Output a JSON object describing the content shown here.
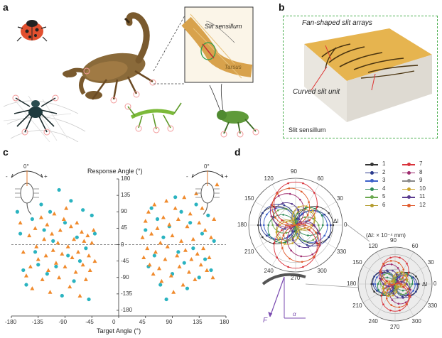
{
  "panels": {
    "a": {
      "letter": "a",
      "inset_labels": [
        "Slit sensillum",
        "Tarsus"
      ]
    },
    "b": {
      "letter": "b",
      "labels": [
        "Fan-shaped slit arrays",
        "Curved slit unit",
        "Slit sensillum"
      ]
    },
    "c": {
      "letter": "c",
      "y_label": "Response Angle (°)",
      "x_label": "Target Angle (°)",
      "y_ticks": [
        "180",
        "135",
        "90",
        "45",
        "0",
        "-45",
        "-90",
        "-135",
        "-180"
      ],
      "x_ticks": [
        "-180",
        "-135",
        "-90",
        "-45",
        "0",
        "45",
        "90",
        "135",
        "180"
      ],
      "indicator": {
        "zero": "0°",
        "minus": "-",
        "plus": "+"
      }
    },
    "d": {
      "letter": "d",
      "main_angles": [
        "90",
        "60",
        "30",
        "0",
        "330",
        "300",
        "270",
        "240",
        "210",
        "180",
        "150",
        "120"
      ],
      "main_rings": [
        "10",
        "20"
      ],
      "delta_label": "Δl",
      "unit_label": "(Δl: × 10⁻⁴ mm)",
      "legend": [
        "1",
        "2",
        "3",
        "4",
        "5",
        "6",
        "7",
        "8",
        "9",
        "10",
        "11",
        "12"
      ],
      "zoom_angles": [
        "90",
        "60",
        "30",
        "0",
        "330",
        "300",
        "270",
        "240",
        "210",
        "180",
        "150",
        "120"
      ],
      "force_label": "F",
      "alpha_label": "α"
    }
  },
  "colors": {
    "teal": "#2ab3c0",
    "orange": "#f08a2c",
    "legend": [
      "#333333",
      "#2a3a8c",
      "#3b5fc9",
      "#2e8b57",
      "#6aa84f",
      "#b39b2d",
      "#d9333b",
      "#9e2b6e",
      "#8a8a8a",
      "#c9a227",
      "#5b3c8f",
      "#e05a2c"
    ]
  },
  "chart_data": [
    {
      "type": "scatter",
      "title": "",
      "xlabel": "Target Angle (°)",
      "ylabel": "Response Angle (°)",
      "xlim": [
        -180,
        180
      ],
      "ylim": [
        -180,
        180
      ],
      "series": [
        {
          "name": "teal circles",
          "marker": "circle",
          "points": [
            [
              -170,
              90
            ],
            [
              -165,
              30
            ],
            [
              -160,
              -70
            ],
            [
              -155,
              -110
            ],
            [
              -150,
              120
            ],
            [
              -145,
              70
            ],
            [
              -140,
              -20
            ],
            [
              -135,
              -55
            ],
            [
              -130,
              110
            ],
            [
              -125,
              40
            ],
            [
              -120,
              -80
            ],
            [
              -115,
              90
            ],
            [
              -110,
              10
            ],
            [
              -105,
              -60
            ],
            [
              -100,
              150
            ],
            [
              -95,
              -140
            ],
            [
              -90,
              60
            ],
            [
              -85,
              -30
            ],
            [
              -80,
              120
            ],
            [
              -75,
              -100
            ],
            [
              -70,
              20
            ],
            [
              -65,
              -45
            ],
            [
              -60,
              95
            ],
            [
              -55,
              -10
            ],
            [
              -50,
              -150
            ],
            [
              -45,
              80
            ],
            [
              -40,
              30
            ],
            [
              45,
              40
            ],
            [
              50,
              -60
            ],
            [
              55,
              100
            ],
            [
              60,
              -30
            ],
            [
              65,
              70
            ],
            [
              70,
              -110
            ],
            [
              75,
              20
            ],
            [
              80,
              -150
            ],
            [
              85,
              50
            ],
            [
              90,
              -80
            ],
            [
              95,
              130
            ],
            [
              100,
              -20
            ],
            [
              105,
              90
            ],
            [
              110,
              -50
            ],
            [
              115,
              -120
            ],
            [
              120,
              60
            ],
            [
              125,
              -10
            ],
            [
              130,
              110
            ],
            [
              135,
              -90
            ],
            [
              140,
              30
            ],
            [
              145,
              -40
            ],
            [
              150,
              80
            ],
            [
              155,
              -70
            ],
            [
              160,
              10
            ]
          ]
        },
        {
          "name": "orange triangles",
          "marker": "triangle",
          "points": [
            [
              -165,
              60
            ],
            [
              -160,
              -20
            ],
            [
              -155,
              -85
            ],
            [
              -150,
              25
            ],
            [
              -148,
              -60
            ],
            [
              -145,
              -120
            ],
            [
              -140,
              45
            ],
            [
              -138,
              -5
            ],
            [
              -135,
              -40
            ],
            [
              -130,
              75
            ],
            [
              -128,
              -95
            ],
            [
              -125,
              15
            ],
            [
              -122,
              -30
            ],
            [
              -120,
              55
            ],
            [
              -118,
              -70
            ],
            [
              -115,
              -130
            ],
            [
              -112,
              30
            ],
            [
              -110,
              -15
            ],
            [
              -108,
              85
            ],
            [
              -105,
              -50
            ],
            [
              -102,
              5
            ],
            [
              -100,
              -90
            ],
            [
              -98,
              40
            ],
            [
              -95,
              -25
            ],
            [
              -92,
              70
            ],
            [
              -90,
              -60
            ],
            [
              -88,
              100
            ],
            [
              -85,
              -5
            ],
            [
              -82,
              -115
            ],
            [
              -80,
              50
            ],
            [
              -78,
              -35
            ],
            [
              -75,
              15
            ],
            [
              -72,
              -75
            ],
            [
              -70,
              60
            ],
            [
              -68,
              -20
            ],
            [
              -65,
              -140
            ],
            [
              -62,
              35
            ],
            [
              -60,
              -55
            ],
            [
              -58,
              10
            ],
            [
              -55,
              -95
            ],
            [
              -52,
              25
            ],
            [
              -50,
              -30
            ],
            [
              -48,
              -70
            ],
            [
              -45,
              5
            ],
            [
              -42,
              40
            ],
            [
              -40,
              -45
            ],
            [
              40,
              20
            ],
            [
              42,
              -35
            ],
            [
              45,
              65
            ],
            [
              48,
              -10
            ],
            [
              50,
              90
            ],
            [
              52,
              -55
            ],
            [
              55,
              30
            ],
            [
              58,
              -80
            ],
            [
              60,
              110
            ],
            [
              62,
              -20
            ],
            [
              65,
              45
            ],
            [
              68,
              -65
            ],
            [
              70,
              5
            ],
            [
              72,
              -100
            ],
            [
              75,
              75
            ],
            [
              78,
              -40
            ],
            [
              80,
              120
            ],
            [
              82,
              -5
            ],
            [
              85,
              55
            ],
            [
              88,
              -85
            ],
            [
              90,
              25
            ],
            [
              92,
              -130
            ],
            [
              95,
              100
            ],
            [
              98,
              -30
            ],
            [
              100,
              70
            ],
            [
              102,
              -60
            ],
            [
              105,
              10
            ],
            [
              108,
              -110
            ],
            [
              110,
              130
            ],
            [
              112,
              -15
            ],
            [
              115,
              50
            ],
            [
              118,
              -75
            ],
            [
              120,
              85
            ],
            [
              122,
              -40
            ],
            [
              125,
              15
            ],
            [
              128,
              -95
            ],
            [
              130,
              140
            ],
            [
              132,
              -25
            ],
            [
              135,
              60
            ],
            [
              138,
              -55
            ],
            [
              140,
              100
            ],
            [
              142,
              -10
            ],
            [
              145,
              40
            ],
            [
              148,
              -70
            ],
            [
              150,
              155
            ],
            [
              152,
              -35
            ],
            [
              155,
              20
            ],
            [
              158,
              -90
            ],
            [
              160,
              70
            ],
            [
              165,
              165
            ]
          ]
        }
      ]
    },
    {
      "type": "polar",
      "title": "",
      "theta_ticks_deg": [
        0,
        30,
        60,
        90,
        120,
        150,
        180,
        210,
        240,
        270,
        300,
        330
      ],
      "r_ticks": [
        10,
        20
      ],
      "r_max": 25,
      "series": [
        {
          "name": "1",
          "angle_deg": 0,
          "amplitude": 20
        },
        {
          "name": "2",
          "angle_deg": 170,
          "amplitude": 19
        },
        {
          "name": "3",
          "angle_deg": 175,
          "amplitude": 17
        },
        {
          "name": "4",
          "angle_deg": 15,
          "amplitude": 15
        },
        {
          "name": "5",
          "angle_deg": 160,
          "amplitude": 13
        },
        {
          "name": "6",
          "angle_deg": 30,
          "amplitude": 11
        },
        {
          "name": "7",
          "angle_deg": 90,
          "amplitude": 23
        },
        {
          "name": "8",
          "angle_deg": 120,
          "amplitude": 18
        },
        {
          "name": "9",
          "angle_deg": 60,
          "amplitude": 9
        },
        {
          "name": "10",
          "angle_deg": 45,
          "amplitude": 12
        },
        {
          "name": "11",
          "angle_deg": 135,
          "amplitude": 14
        },
        {
          "name": "12",
          "angle_deg": 105,
          "amplitude": 20
        }
      ]
    }
  ]
}
